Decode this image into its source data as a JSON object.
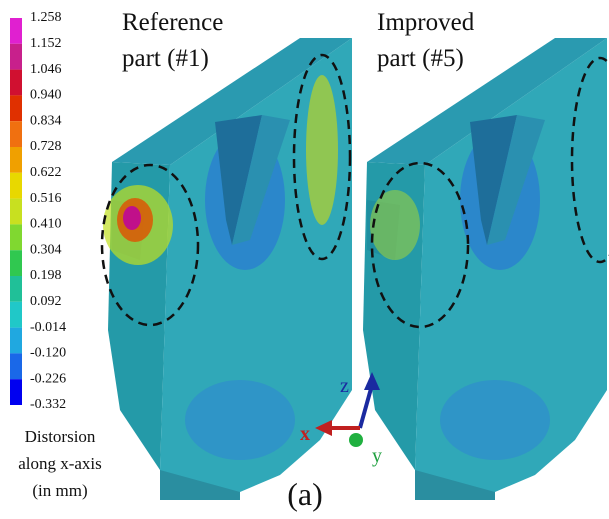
{
  "legend": {
    "labels": [
      "1.258",
      "1.152",
      "1.046",
      "0.940",
      "0.834",
      "0.728",
      "0.622",
      "0.516",
      "0.410",
      "0.304",
      "0.198",
      "0.092",
      "-0.014",
      "-0.120",
      "-0.226",
      "-0.332"
    ],
    "title": [
      "Distorsion",
      "along x-axis",
      "(in mm)"
    ]
  },
  "panels": [
    {
      "title": [
        "Reference",
        "part (#1)"
      ]
    },
    {
      "title": [
        "Improved",
        "part (#5)"
      ]
    }
  ],
  "axes": {
    "z": "z",
    "x": "x",
    "y": "y"
  },
  "caption": "(a)"
}
